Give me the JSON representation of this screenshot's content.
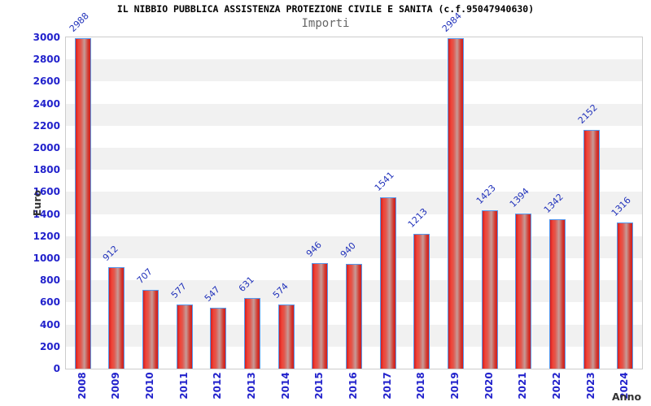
{
  "chart_data": {
    "type": "bar",
    "title": "IL NIBBIO PUBBLICA ASSISTENZA PROTEZIONE CIVILE E SANITA (c.f.95047940630)",
    "subtitle": "Importi",
    "xlabel": "Anno",
    "ylabel": "Euro",
    "categories": [
      "2008",
      "2009",
      "2010",
      "2011",
      "2012",
      "2013",
      "2014",
      "2015",
      "2016",
      "2017",
      "2018",
      "2019",
      "2020",
      "2021",
      "2022",
      "2023",
      "2024"
    ],
    "values": [
      2988,
      912,
      707,
      577,
      547,
      631,
      574,
      946,
      940,
      1541,
      1213,
      2984,
      1423,
      1394,
      1342,
      2152,
      1316
    ],
    "ylim": [
      0,
      3000
    ],
    "ytick_step": 200,
    "grid": "horizontal-bands-200",
    "legend": "none",
    "colors": {
      "bar_edge": "#d21e1e",
      "bar_bright": "#f04337",
      "bar_mid": "#c69b97",
      "bar_border": "#5599ee",
      "tick_label": "#2222cc",
      "value_label": "#2233bb",
      "title": "#000000",
      "subtitle": "#666666",
      "axis_title": "#333333",
      "band_gray": "#f1f1f1",
      "band_white": "#ffffff",
      "plot_border": "#cccccc"
    }
  }
}
